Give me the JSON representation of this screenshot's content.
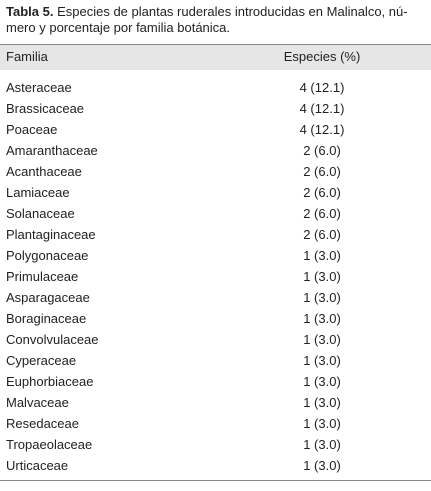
{
  "caption": {
    "label": "Tabla 5.",
    "lines": [
      "Especies de plantas ruderales introducidas en Malinalco, nú-",
      "mero y porcentaje por familia botánica."
    ]
  },
  "table": {
    "header": [
      "Familia",
      "Especies (%)"
    ],
    "rows": [
      [
        "Asteraceae",
        "4 (12.1)"
      ],
      [
        "Brassicaceae",
        "4 (12.1)"
      ],
      [
        "Poaceae",
        "4 (12.1)"
      ],
      [
        "Amaranthaceae",
        "2 (6.0)"
      ],
      [
        "Acanthaceae",
        "2 (6.0)"
      ],
      [
        "Lamiaceae",
        "2 (6.0)"
      ],
      [
        "Solanaceae",
        "2 (6.0)"
      ],
      [
        "Plantaginaceae",
        "2 (6.0)"
      ],
      [
        "Polygonaceae",
        "1 (3.0)"
      ],
      [
        "Primulaceae",
        "1 (3.0)"
      ],
      [
        "Asparagaceae",
        "1 (3.0)"
      ],
      [
        "Boraginaceae",
        "1 (3.0)"
      ],
      [
        "Convolvulaceae",
        "1 (3.0)"
      ],
      [
        "Cyperaceae",
        "1 (3.0)"
      ],
      [
        "Euphorbiaceae",
        "1 (3.0)"
      ],
      [
        "Malvaceae",
        "1 (3.0)"
      ],
      [
        "Resedaceae",
        "1 (3.0)"
      ],
      [
        "Tropaeolaceae",
        "1 (3.0)"
      ],
      [
        "Urticaceae",
        "1 (3.0)"
      ]
    ]
  }
}
